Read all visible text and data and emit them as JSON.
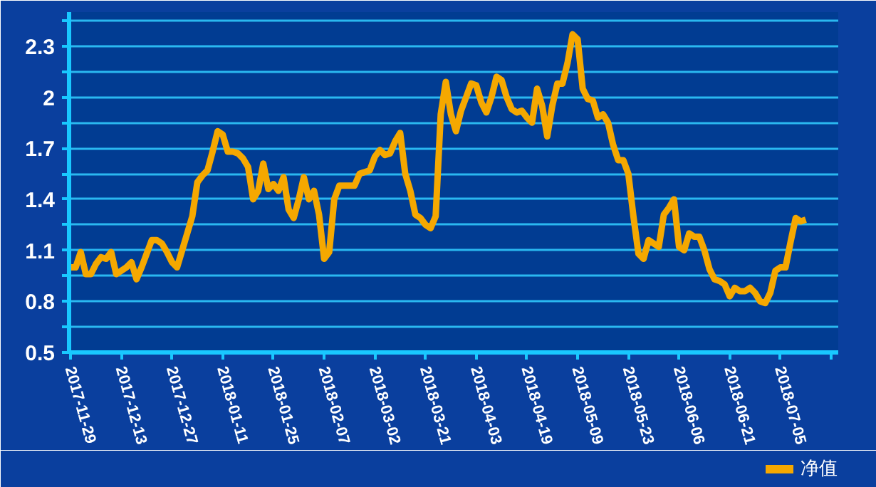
{
  "chart_data": {
    "type": "line",
    "categories": [
      "2017-11-29",
      null,
      null,
      null,
      null,
      null,
      null,
      null,
      null,
      null,
      "2017-12-13",
      null,
      null,
      null,
      null,
      null,
      null,
      null,
      null,
      null,
      "2017-12-27",
      null,
      null,
      null,
      null,
      null,
      null,
      null,
      null,
      null,
      "2018-01-11",
      null,
      null,
      null,
      null,
      null,
      null,
      null,
      null,
      null,
      "2018-01-25",
      null,
      null,
      null,
      null,
      null,
      null,
      null,
      null,
      null,
      "2018-02-07",
      null,
      null,
      null,
      null,
      null,
      null,
      null,
      null,
      null,
      "2018-03-02",
      null,
      null,
      null,
      null,
      null,
      null,
      null,
      null,
      null,
      "2018-03-21",
      null,
      null,
      null,
      null,
      null,
      null,
      null,
      null,
      null,
      "2018-04-03",
      null,
      null,
      null,
      null,
      null,
      null,
      null,
      null,
      null,
      "2018-04-19",
      null,
      null,
      null,
      null,
      null,
      null,
      null,
      null,
      null,
      "2018-05-09",
      null,
      null,
      null,
      null,
      null,
      null,
      null,
      null,
      null,
      "2018-05-23",
      null,
      null,
      null,
      null,
      null,
      null,
      null,
      null,
      null,
      "2018-06-06",
      null,
      null,
      null,
      null,
      null,
      null,
      null,
      null,
      null,
      "2018-06-21",
      null,
      null,
      null,
      null,
      null,
      null,
      null,
      null,
      null,
      "2018-07-05",
      null,
      null,
      null,
      null,
      null
    ],
    "series": [
      {
        "name": "净值",
        "color": "#f5a800",
        "values": [
          1.0,
          1.0,
          1.09,
          0.96,
          0.96,
          1.02,
          1.06,
          1.05,
          1.09,
          0.96,
          0.98,
          1.0,
          1.03,
          0.93,
          1.0,
          1.08,
          1.16,
          1.16,
          1.14,
          1.09,
          1.03,
          1.0,
          1.1,
          1.2,
          1.3,
          1.5,
          1.54,
          1.57,
          1.68,
          1.8,
          1.78,
          1.68,
          1.68,
          1.67,
          1.64,
          1.59,
          1.4,
          1.45,
          1.61,
          1.46,
          1.49,
          1.45,
          1.53,
          1.34,
          1.29,
          1.4,
          1.53,
          1.4,
          1.45,
          1.31,
          1.05,
          1.09,
          1.4,
          1.48,
          1.48,
          1.48,
          1.48,
          1.55,
          1.56,
          1.57,
          1.65,
          1.69,
          1.66,
          1.67,
          1.74,
          1.79,
          1.55,
          1.45,
          1.31,
          1.29,
          1.25,
          1.23,
          1.3,
          1.9,
          2.09,
          1.9,
          1.8,
          1.92,
          2.0,
          2.08,
          2.07,
          1.97,
          1.91,
          2.0,
          2.12,
          2.1,
          2.0,
          1.93,
          1.91,
          1.92,
          1.88,
          1.85,
          2.05,
          1.95,
          1.77,
          1.95,
          2.08,
          2.08,
          2.2,
          2.37,
          2.34,
          2.05,
          1.99,
          1.98,
          1.88,
          1.9,
          1.85,
          1.72,
          1.63,
          1.63,
          1.55,
          1.3,
          1.08,
          1.05,
          1.16,
          1.14,
          1.12,
          1.31,
          1.35,
          1.4,
          1.12,
          1.1,
          1.2,
          1.18,
          1.18,
          1.1,
          0.99,
          0.93,
          0.92,
          0.9,
          0.83,
          0.88,
          0.86,
          0.86,
          0.88,
          0.85,
          0.8,
          0.79,
          0.85,
          0.98,
          1.0,
          1.0,
          1.15,
          1.29,
          1.27,
          1.28
        ]
      }
    ],
    "ylim": [
      0.5,
      2.5
    ],
    "yticks": [
      0.5,
      {
        "value": 0.65,
        "label": null
      },
      0.8,
      {
        "value": 0.95,
        "label": null
      },
      1.1,
      {
        "value": 1.25,
        "label": null
      },
      1.4,
      {
        "value": 1.55,
        "label": null
      },
      1.7,
      {
        "value": 1.85,
        "label": null
      },
      2,
      {
        "value": 2.15,
        "label": null
      },
      2.3,
      {
        "value": 2.45,
        "label": null
      }
    ],
    "grid": true,
    "legend": "bottom right",
    "marker": "none",
    "line_style": "solid"
  }
}
